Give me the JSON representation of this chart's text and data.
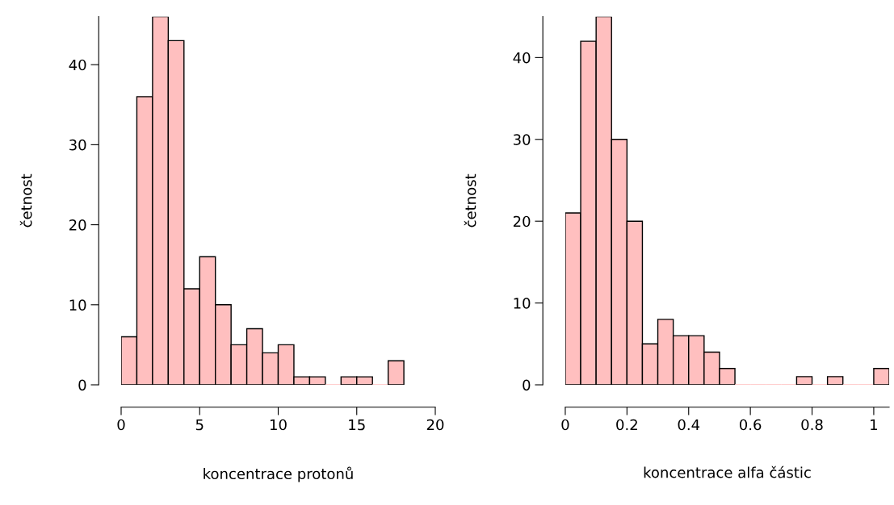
{
  "chart_data": [
    {
      "type": "histogram",
      "xlabel": "koncentrace protonů",
      "ylabel": "četnost",
      "color": "#ffbfbf",
      "bins": [
        0,
        1,
        2,
        3,
        4,
        5,
        6,
        7,
        8,
        9,
        10,
        11,
        12,
        13,
        14,
        15,
        16,
        17,
        18
      ],
      "values": [
        6,
        36,
        46,
        43,
        12,
        16,
        10,
        5,
        7,
        4,
        5,
        1,
        1,
        0,
        1,
        1,
        0,
        3
      ],
      "xlim": [
        0,
        20
      ],
      "ylim": [
        0,
        46
      ],
      "xticks": [
        0,
        5,
        10,
        15,
        20
      ],
      "yticks": [
        0,
        10,
        20,
        30,
        40
      ]
    },
    {
      "type": "histogram",
      "xlabel": "koncentrace alfa částic",
      "ylabel": "četnost",
      "color": "#ffbfbf",
      "bins": [
        0,
        0.05,
        0.1,
        0.15,
        0.2,
        0.25,
        0.3,
        0.35,
        0.4,
        0.45,
        0.5,
        0.55,
        0.6,
        0.65,
        0.7,
        0.75,
        0.8,
        0.85,
        0.9,
        0.95,
        1.0,
        1.05
      ],
      "values": [
        21,
        42,
        45,
        30,
        20,
        5,
        8,
        6,
        6,
        4,
        2,
        0,
        0,
        0,
        0,
        1,
        0,
        1,
        0,
        0,
        2
      ],
      "xlim": [
        0,
        1.05
      ],
      "ylim": [
        0,
        45
      ],
      "xticks": [
        0,
        {
          "value": 0.2,
          "label": "0.2"
        },
        {
          "value": 0.4,
          "label": "0.4"
        },
        {
          "value": 0.6,
          "label": "0.6"
        },
        {
          "value": 0.8,
          "label": "0.8"
        },
        1
      ],
      "yticks": [
        0,
        10,
        20,
        30,
        40
      ]
    }
  ]
}
